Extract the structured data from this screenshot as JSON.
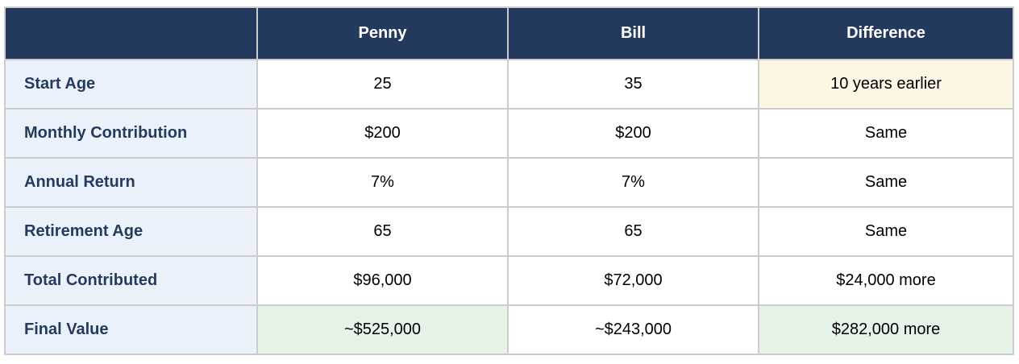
{
  "table": {
    "columns": [
      "",
      "Penny",
      "Bill",
      "Difference"
    ],
    "rows": [
      {
        "label": "Start Age",
        "penny": "25",
        "bill": "35",
        "difference": "10 years earlier",
        "difference_highlight": "cream"
      },
      {
        "label": "Monthly Contribution",
        "penny": "$200",
        "bill": "$200",
        "difference": "Same"
      },
      {
        "label": "Annual Return",
        "penny": "7%",
        "bill": "7%",
        "difference": "Same"
      },
      {
        "label": "Retirement Age",
        "penny": "65",
        "bill": "65",
        "difference": "Same"
      },
      {
        "label": "Total Contributed",
        "penny": "$96,000",
        "bill": "$72,000",
        "difference": "$24,000 more"
      },
      {
        "label": "Final Value",
        "penny": "~$525,000",
        "bill": "~$243,000",
        "difference": "$282,000 more",
        "penny_highlight": "green",
        "difference_highlight": "green"
      }
    ],
    "colors": {
      "header_bg": "#24395e",
      "header_text": "#ffffff",
      "label_bg": "#eaf1fa",
      "label_text": "#243b5e",
      "highlight_cream": "#fdf6e4",
      "highlight_green": "#e6f3e7",
      "border": "#cccccc",
      "cell_text": "#000000"
    }
  }
}
